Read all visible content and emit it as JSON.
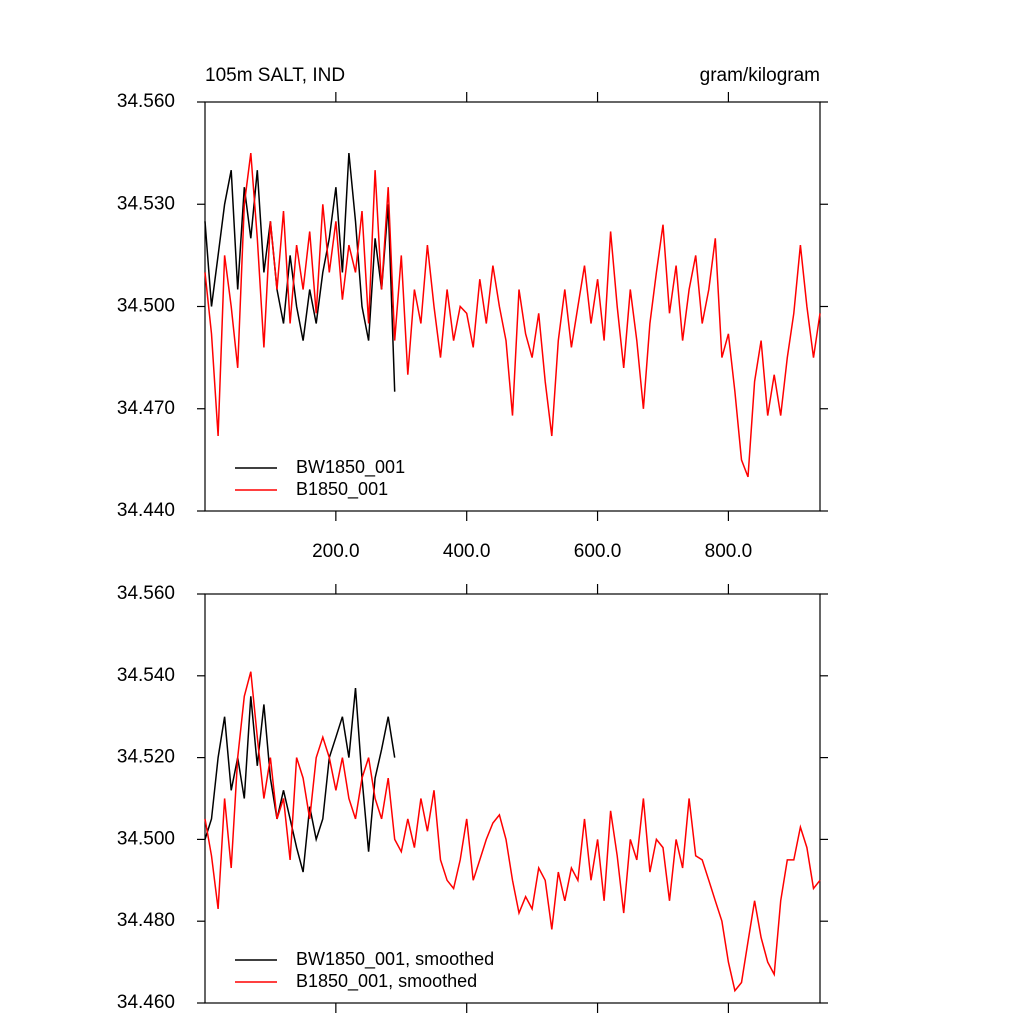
{
  "chart_data": [
    {
      "type": "line",
      "title": "105m SALT, IND",
      "subtitle": "gram/kilogram",
      "xlim": [
        0,
        940
      ],
      "xticks": [
        {
          "value": 200,
          "label": "200.0"
        },
        {
          "value": 400,
          "label": "400.0"
        },
        {
          "value": 600,
          "label": "600.0"
        },
        {
          "value": 800,
          "label": "800.0"
        }
      ],
      "ylim": [
        34.44,
        34.56
      ],
      "yticks": [
        {
          "value": 34.44,
          "label": "34.440"
        },
        {
          "value": 34.47,
          "label": "34.470"
        },
        {
          "value": 34.5,
          "label": "34.500"
        },
        {
          "value": 34.53,
          "label": "34.530"
        },
        {
          "value": 34.56,
          "label": "34.560"
        }
      ],
      "legend": "lower-left",
      "series": [
        {
          "name": "BW1850_001",
          "color": "#000000",
          "x": [
            0,
            10,
            20,
            30,
            40,
            50,
            60,
            70,
            80,
            90,
            100,
            110,
            120,
            130,
            140,
            150,
            160,
            170,
            180,
            190,
            200,
            210,
            220,
            230,
            240,
            250,
            260,
            270,
            280,
            290
          ],
          "values": [
            34.525,
            34.5,
            34.515,
            34.53,
            34.54,
            34.505,
            34.535,
            34.52,
            34.54,
            34.51,
            34.525,
            34.505,
            34.495,
            34.515,
            34.5,
            34.49,
            34.505,
            34.495,
            34.51,
            34.52,
            34.535,
            34.51,
            34.545,
            34.525,
            34.5,
            34.49,
            34.52,
            34.505,
            34.53,
            34.475
          ]
        },
        {
          "name": "B1850_001",
          "color": "#ff0000",
          "x": [
            0,
            10,
            20,
            30,
            40,
            50,
            60,
            70,
            80,
            90,
            100,
            110,
            120,
            130,
            140,
            150,
            160,
            170,
            180,
            190,
            200,
            210,
            220,
            230,
            240,
            250,
            260,
            270,
            280,
            290,
            300,
            310,
            320,
            330,
            340,
            350,
            360,
            370,
            380,
            390,
            400,
            410,
            420,
            430,
            440,
            450,
            460,
            470,
            480,
            490,
            500,
            510,
            520,
            530,
            540,
            550,
            560,
            570,
            580,
            590,
            600,
            610,
            620,
            630,
            640,
            650,
            660,
            670,
            680,
            690,
            700,
            710,
            720,
            730,
            740,
            750,
            760,
            770,
            780,
            790,
            800,
            810,
            820,
            830,
            840,
            850,
            860,
            870,
            880,
            890,
            900,
            910,
            920,
            930,
            940
          ],
          "values": [
            34.51,
            34.492,
            34.462,
            34.515,
            34.5,
            34.482,
            34.53,
            34.545,
            34.52,
            34.488,
            34.525,
            34.505,
            34.528,
            34.495,
            34.518,
            34.505,
            34.522,
            34.498,
            34.53,
            34.51,
            34.525,
            34.502,
            34.518,
            34.51,
            34.528,
            34.495,
            34.54,
            34.505,
            34.535,
            34.49,
            34.515,
            34.48,
            34.505,
            34.495,
            34.518,
            34.5,
            34.485,
            34.505,
            34.49,
            34.5,
            34.498,
            34.488,
            34.508,
            34.495,
            34.512,
            34.5,
            34.49,
            34.468,
            34.505,
            34.492,
            34.485,
            34.498,
            34.478,
            34.462,
            34.49,
            34.505,
            34.488,
            34.5,
            34.512,
            34.495,
            34.508,
            34.49,
            34.522,
            34.5,
            34.482,
            34.505,
            34.49,
            34.47,
            34.495,
            34.51,
            34.524,
            34.498,
            34.512,
            34.49,
            34.505,
            34.515,
            34.495,
            34.505,
            34.52,
            34.485,
            34.492,
            34.475,
            34.455,
            34.45,
            34.478,
            34.49,
            34.468,
            34.48,
            34.468,
            34.485,
            34.498,
            34.518,
            34.5,
            34.485,
            34.498
          ]
        }
      ]
    },
    {
      "type": "line",
      "xlim": [
        0,
        940
      ],
      "xticks": [
        200,
        400,
        600,
        800
      ],
      "ylim": [
        34.46,
        34.56
      ],
      "yticks": [
        {
          "value": 34.46,
          "label": "34.460"
        },
        {
          "value": 34.48,
          "label": "34.480"
        },
        {
          "value": 34.5,
          "label": "34.500"
        },
        {
          "value": 34.52,
          "label": "34.520"
        },
        {
          "value": 34.54,
          "label": "34.540"
        },
        {
          "value": 34.56,
          "label": "34.560"
        }
      ],
      "legend": "lower-left",
      "series": [
        {
          "name": "BW1850_001, smoothed",
          "color": "#000000",
          "x": [
            0,
            10,
            20,
            30,
            40,
            50,
            60,
            70,
            80,
            90,
            100,
            110,
            120,
            130,
            140,
            150,
            160,
            170,
            180,
            190,
            200,
            210,
            220,
            230,
            240,
            250,
            260,
            270,
            280,
            290
          ],
          "values": [
            34.5,
            34.505,
            34.52,
            34.53,
            34.512,
            34.52,
            34.51,
            34.535,
            34.518,
            34.533,
            34.515,
            34.505,
            34.512,
            34.505,
            34.498,
            34.492,
            34.508,
            34.5,
            34.505,
            34.52,
            34.525,
            34.53,
            34.52,
            34.537,
            34.515,
            34.497,
            34.515,
            34.522,
            34.53,
            34.52
          ]
        },
        {
          "name": "B1850_001, smoothed",
          "color": "#ff0000",
          "x": [
            0,
            10,
            20,
            30,
            40,
            50,
            60,
            70,
            80,
            90,
            100,
            110,
            120,
            130,
            140,
            150,
            160,
            170,
            180,
            190,
            200,
            210,
            220,
            230,
            240,
            250,
            260,
            270,
            280,
            290,
            300,
            310,
            320,
            330,
            340,
            350,
            360,
            370,
            380,
            390,
            400,
            410,
            420,
            430,
            440,
            450,
            460,
            470,
            480,
            490,
            500,
            510,
            520,
            530,
            540,
            550,
            560,
            570,
            580,
            590,
            600,
            610,
            620,
            630,
            640,
            650,
            660,
            670,
            680,
            690,
            700,
            710,
            720,
            730,
            740,
            750,
            760,
            770,
            780,
            790,
            800,
            810,
            820,
            830,
            840,
            850,
            860,
            870,
            880,
            890,
            900,
            910,
            920,
            930,
            940
          ],
          "values": [
            34.505,
            34.496,
            34.483,
            34.51,
            34.493,
            34.52,
            34.535,
            34.541,
            34.525,
            34.51,
            34.52,
            34.505,
            34.51,
            34.495,
            34.52,
            34.515,
            34.505,
            34.52,
            34.525,
            34.52,
            34.512,
            34.52,
            34.51,
            34.505,
            34.515,
            34.52,
            34.51,
            34.505,
            34.515,
            34.5,
            34.497,
            34.505,
            34.498,
            34.51,
            34.502,
            34.512,
            34.495,
            34.49,
            34.488,
            34.495,
            34.505,
            34.49,
            34.495,
            34.5,
            34.504,
            34.506,
            34.5,
            34.49,
            34.482,
            34.486,
            34.483,
            34.493,
            34.49,
            34.478,
            34.492,
            34.485,
            34.493,
            34.49,
            34.505,
            34.49,
            34.5,
            34.485,
            34.507,
            34.496,
            34.482,
            34.5,
            34.495,
            34.51,
            34.492,
            34.5,
            34.498,
            34.485,
            34.5,
            34.493,
            34.51,
            34.496,
            34.495,
            34.49,
            34.485,
            34.48,
            34.47,
            34.463,
            34.465,
            34.475,
            34.485,
            34.476,
            34.47,
            34.467,
            34.485,
            34.495,
            34.495,
            34.503,
            34.498,
            34.488,
            34.49
          ]
        }
      ]
    }
  ]
}
